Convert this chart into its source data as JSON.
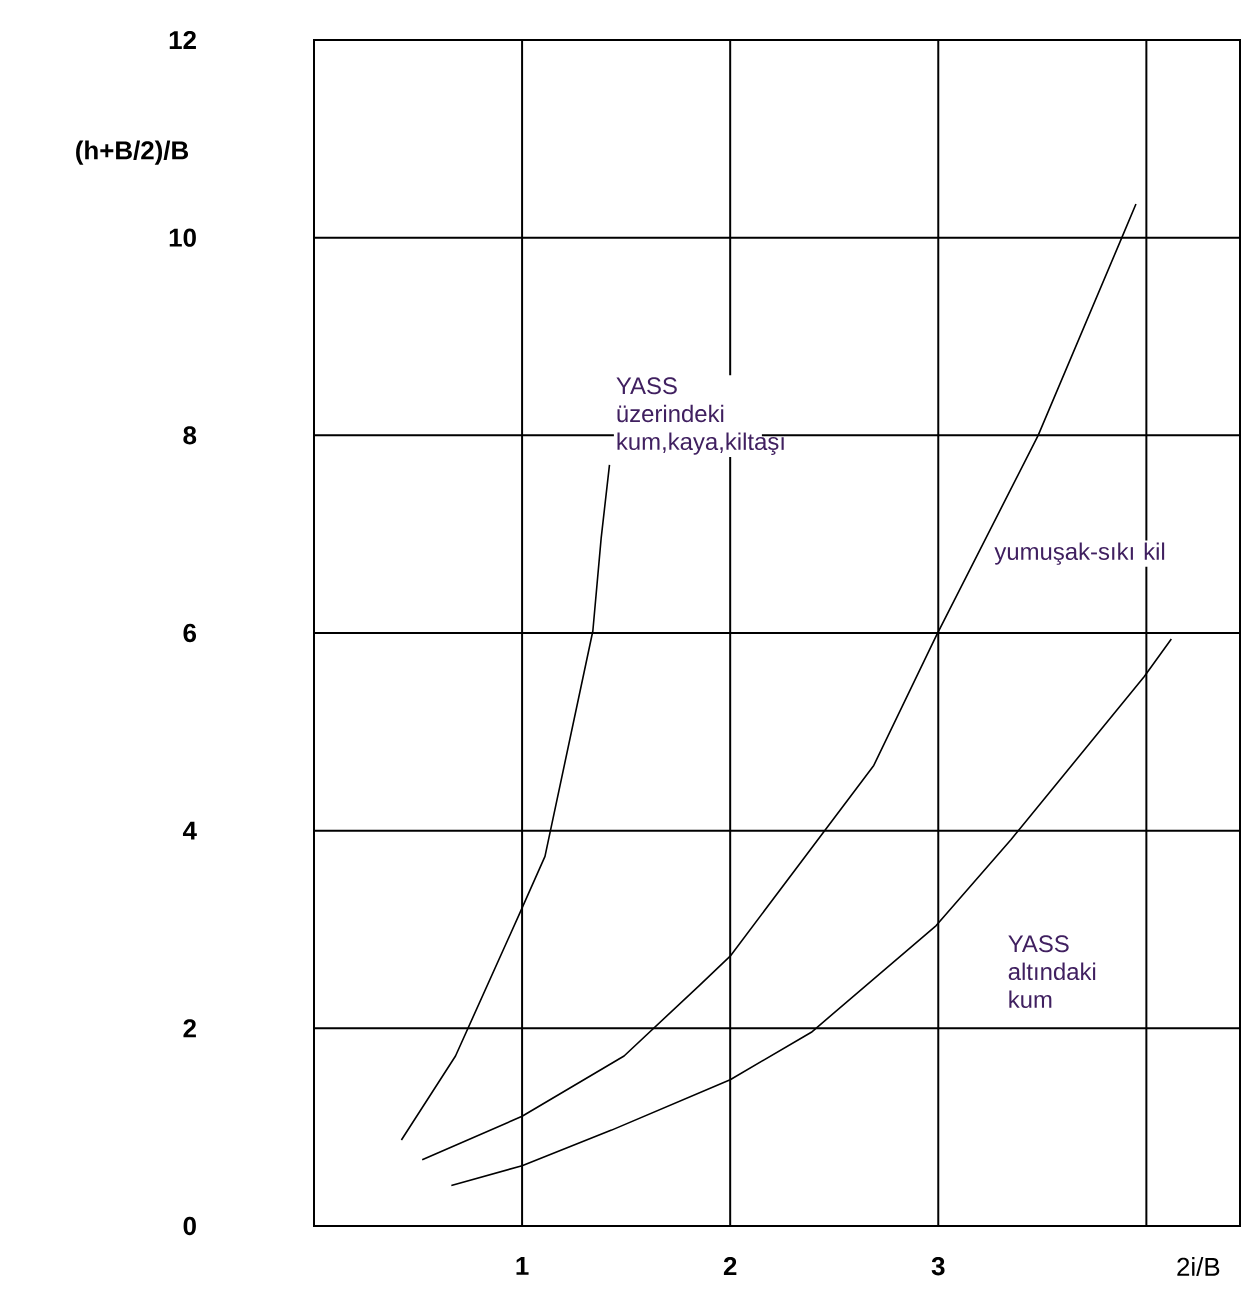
{
  "chart_data": {
    "type": "line",
    "xlabel": "2i/B",
    "ylabel": "(h+B/2)/B",
    "xlim": [
      0,
      4.45
    ],
    "ylim": [
      0,
      12
    ],
    "xticks": [
      1,
      2,
      3,
      {
        "value": 4,
        "label": null
      }
    ],
    "yticks": [
      0,
      2,
      4,
      6,
      8,
      10,
      12
    ],
    "grid": true,
    "marker": "none",
    "line_style": "solid",
    "series": [
      {
        "name": "YASS üzerindeki kum,kaya,kiltaşı",
        "color": "#000000",
        "x": [
          0.42,
          0.68,
          0.99,
          1.11,
          1.34,
          1.38,
          1.42
        ],
        "values": [
          0.87,
          1.72,
          3.17,
          3.74,
          6.02,
          6.96,
          7.7
        ]
      },
      {
        "name": "yumuşak-sıkı kil",
        "color": "#000000",
        "x": [
          0.52,
          1.0,
          1.49,
          1.85,
          2.0,
          2.69,
          2.99,
          3.48,
          3.88,
          3.95
        ],
        "values": [
          0.67,
          1.11,
          1.72,
          2.43,
          2.73,
          4.66,
          5.97,
          8.0,
          9.99,
          10.34
        ]
      },
      {
        "name": "YASS altındaki kum",
        "color": "#000000",
        "x": [
          0.66,
          1.0,
          1.43,
          2.0,
          2.39,
          2.99,
          3.35,
          3.99,
          4.12
        ],
        "values": [
          0.41,
          0.61,
          0.97,
          1.48,
          1.96,
          3.04,
          3.91,
          5.56,
          5.94
        ]
      }
    ]
  }
}
